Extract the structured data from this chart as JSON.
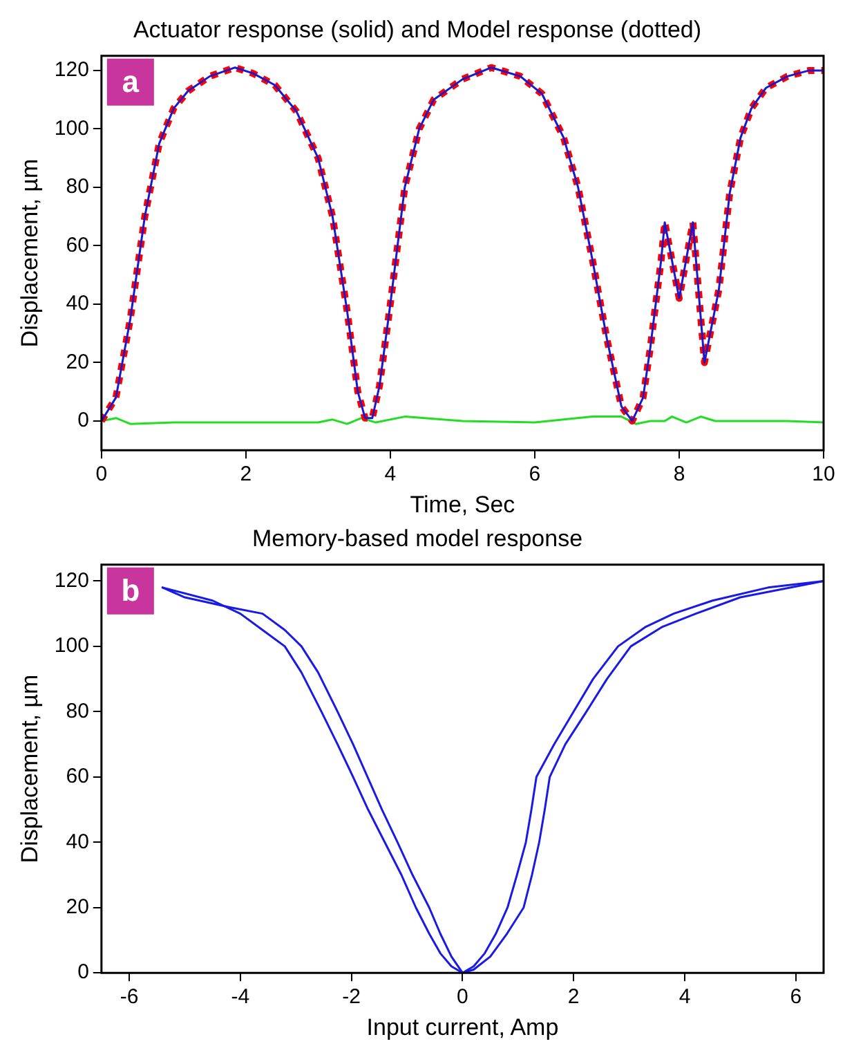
{
  "chart_data": [
    {
      "type": "line",
      "title": "Actuator response (solid) and Model response (dotted)",
      "xlabel": "Time, Sec",
      "ylabel": "Displacement, µm",
      "annotations": [
        "a"
      ],
      "xlim": [
        0,
        10
      ],
      "xticks": [
        0,
        2,
        4,
        6,
        8,
        10
      ],
      "ylim": [
        -10,
        125
      ],
      "yticks": [
        0,
        20,
        40,
        60,
        80,
        100,
        120
      ],
      "grid": false,
      "legend": false,
      "series": [
        {
          "color": "#1a1acc",
          "line_style": "solid",
          "x": [
            0,
            0.2,
            0.4,
            0.6,
            0.8,
            1.0,
            1.2,
            1.5,
            1.85,
            2.1,
            2.4,
            2.7,
            3.0,
            3.2,
            3.4,
            3.55,
            3.65,
            3.75,
            3.85,
            4.0,
            4.2,
            4.4,
            4.6,
            5.0,
            5.4,
            5.8,
            6.1,
            6.4,
            6.6,
            6.8,
            7.0,
            7.2,
            7.35,
            7.5,
            7.6,
            7.75,
            7.8,
            8.0,
            8.19,
            8.35,
            8.55,
            8.7,
            8.85,
            9.0,
            9.2,
            9.5,
            9.8,
            10
          ],
          "values": [
            0,
            8,
            35,
            70,
            95,
            107,
            113,
            118,
            121,
            119,
            115,
            106,
            90,
            70,
            38,
            10,
            1,
            1,
            12,
            40,
            80,
            100,
            110,
            117,
            121,
            118,
            112,
            97,
            80,
            55,
            28,
            5,
            0,
            8,
            25,
            55,
            68,
            42,
            68,
            20,
            45,
            78,
            97,
            107,
            114,
            118,
            120,
            120
          ]
        },
        {
          "color": "#ff0000",
          "line_style": "dotted",
          "x": [
            0,
            0.2,
            0.4,
            0.6,
            0.8,
            1.0,
            1.2,
            1.5,
            1.85,
            2.1,
            2.4,
            2.7,
            3.0,
            3.2,
            3.4,
            3.55,
            3.65,
            3.75,
            3.85,
            4.0,
            4.2,
            4.4,
            4.6,
            5.0,
            5.4,
            5.8,
            6.1,
            6.4,
            6.6,
            6.8,
            7.0,
            7.2,
            7.35,
            7.5,
            7.6,
            7.75,
            7.8,
            8.0,
            8.19,
            8.35,
            8.55,
            8.7,
            8.85,
            9.0,
            9.2,
            9.5,
            9.8,
            10
          ],
          "values": [
            0,
            8,
            35,
            70,
            95,
            107,
            113,
            118,
            121,
            119,
            115,
            106,
            90,
            70,
            38,
            10,
            1,
            1,
            12,
            40,
            80,
            100,
            110,
            117,
            121,
            118,
            112,
            97,
            80,
            55,
            28,
            5,
            0,
            8,
            25,
            55,
            68,
            42,
            68,
            20,
            45,
            78,
            97,
            107,
            114,
            118,
            120,
            120
          ]
        },
        {
          "color": "#22dd22",
          "line_style": "solid",
          "x": [
            0,
            0.2,
            0.4,
            1,
            2,
            3,
            3.2,
            3.4,
            3.6,
            3.8,
            4.2,
            5,
            6,
            6.8,
            7.2,
            7.4,
            7.6,
            7.8,
            7.9,
            8.1,
            8.3,
            8.5,
            9,
            9.5,
            10
          ],
          "values": [
            0,
            1,
            -1,
            -0.5,
            -0.5,
            -0.5,
            0.5,
            -1,
            1,
            -0.5,
            1.5,
            0,
            -0.5,
            1.5,
            1.5,
            -1,
            0,
            0,
            1.5,
            -0.5,
            1.5,
            0,
            0,
            0,
            -0.5
          ]
        }
      ]
    },
    {
      "type": "line",
      "title": "Memory-based model response",
      "xlabel": "Input current, Amp",
      "ylabel": "Displacement, µm",
      "annotations": [
        "b"
      ],
      "xlim": [
        -6.5,
        6.5
      ],
      "xticks": [
        -6,
        -4,
        -2,
        0,
        2,
        4,
        6
      ],
      "ylim": [
        0,
        125
      ],
      "yticks": [
        0,
        20,
        40,
        60,
        80,
        100,
        120
      ],
      "grid": false,
      "legend": false,
      "series": [
        {
          "color": "#1a1ae6",
          "line_style": "solid",
          "x": [
            -5.4,
            -4.5,
            -4,
            -3.6,
            -3.2,
            -2.9,
            -2.54,
            -2.25,
            -1.97,
            -1.7,
            -1.4,
            -1.1,
            -0.84,
            -0.6,
            -0.4,
            -0.2,
            0,
            0.2,
            0.4,
            0.6,
            0.81,
            0.98,
            1.14,
            1.24,
            1.33,
            1.65,
            2.0,
            2.35,
            2.8,
            3.3,
            3.8,
            4.5,
            5.5,
            6.5
          ],
          "values": [
            118,
            114,
            110,
            105,
            100,
            92,
            80,
            70,
            60,
            50,
            40,
            30,
            20,
            12,
            6,
            2,
            0,
            2,
            6,
            12,
            20,
            30,
            40,
            50,
            60,
            70,
            80,
            90,
            100,
            106,
            110,
            114,
            118,
            120
          ]
        },
        {
          "color": "#1a1ae6",
          "line_style": "solid",
          "x": [
            -5.4,
            -5.0,
            -4.2,
            -3.6,
            -3.2,
            -2.9,
            -2.6,
            -2.25,
            -1.97,
            -1.71,
            -1.45,
            -1.17,
            -0.9,
            -0.6,
            -0.4,
            -0.2,
            0,
            0.2,
            0.5,
            0.8,
            1.1,
            1.25,
            1.38,
            1.48,
            1.57,
            1.85,
            2.23,
            2.6,
            3.03,
            3.6,
            4.2,
            5.0,
            6.5
          ],
          "values": [
            118,
            115,
            112,
            110,
            105,
            100,
            92,
            80,
            70,
            60,
            50,
            40,
            30,
            20,
            12,
            5,
            0,
            1,
            5,
            12,
            20,
            30,
            40,
            50,
            60,
            70,
            80,
            90,
            100,
            106,
            110,
            115,
            120
          ]
        }
      ]
    }
  ]
}
